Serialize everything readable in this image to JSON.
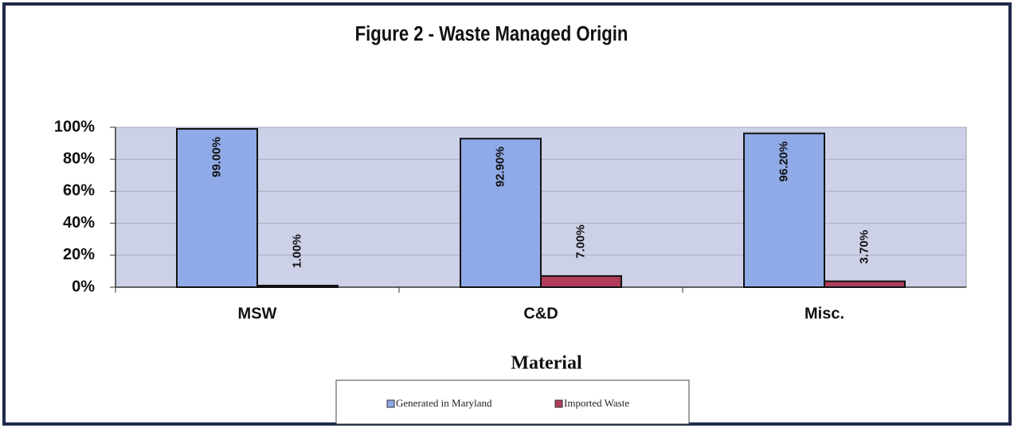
{
  "chart_data": {
    "type": "bar",
    "title": "Figure 2 - Waste Managed Origin",
    "x_label": "Material",
    "categories": [
      "MSW",
      "C&D",
      "Misc."
    ],
    "series": [
      {
        "name": "Generated in Maryland",
        "color": "#8faae6",
        "values": [
          99,
          92.9,
          96.2
        ],
        "value_labels": [
          "99.00%",
          "92.90%",
          "96.20%"
        ]
      },
      {
        "name": "Imported Waste",
        "color": "#b03d5c",
        "values": [
          1,
          7,
          3.7
        ],
        "value_labels": [
          "1.00%",
          "7.00%",
          "3.70%"
        ]
      }
    ],
    "ylim": [
      0,
      100
    ],
    "yticks": [
      {
        "value": 0,
        "label": "0%"
      },
      {
        "value": 20,
        "label": "20%"
      },
      {
        "value": 40,
        "label": "40%"
      },
      {
        "value": 60,
        "label": "60%"
      },
      {
        "value": 80,
        "label": "80%"
      },
      {
        "value": 100,
        "label": "100%"
      }
    ],
    "grid": true,
    "legend": "bottom"
  }
}
